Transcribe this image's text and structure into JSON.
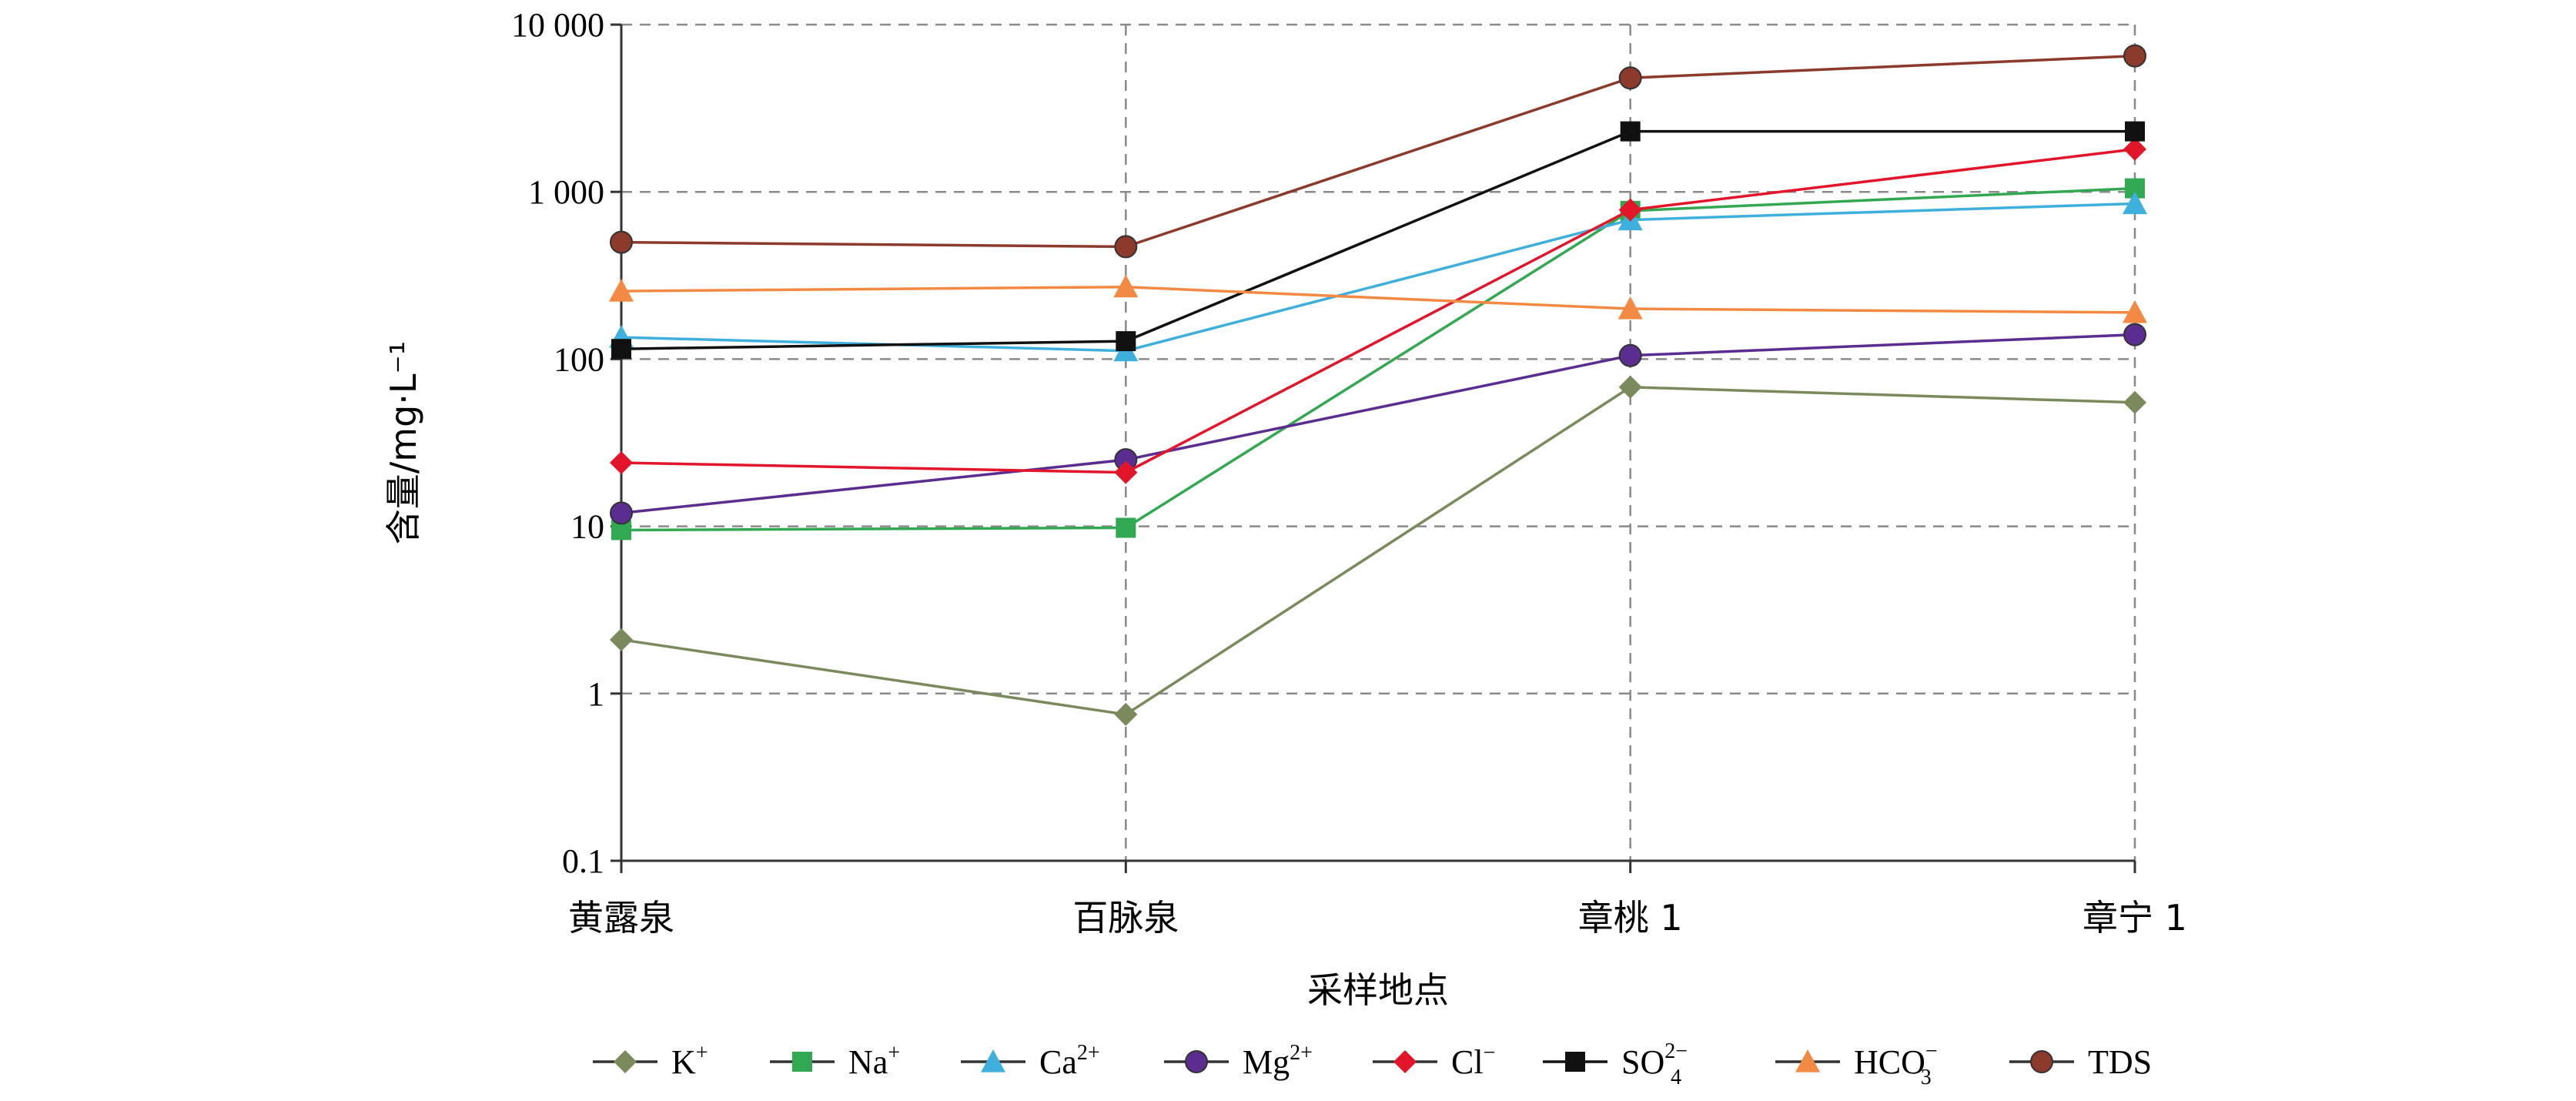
{
  "chart_data": {
    "type": "line",
    "title": "",
    "xlabel": "采样地点",
    "ylabel": "含量/mg·L⁻¹",
    "yscale": "log",
    "ylim": [
      0.1,
      10000
    ],
    "yticks": [
      {
        "value": 0.1,
        "label": "0.1"
      },
      {
        "value": 1,
        "label": "1"
      },
      {
        "value": 10,
        "label": "10"
      },
      {
        "value": 100,
        "label": "100"
      },
      {
        "value": 1000,
        "label": "1 000"
      },
      {
        "value": 10000,
        "label": "10 000"
      }
    ],
    "grid": true,
    "legend_position": "bottom",
    "categories": [
      "黄露泉",
      "百脉泉",
      "章桃 1",
      "章宁 1"
    ],
    "series": [
      {
        "id": "k",
        "base": "K",
        "sup": "+",
        "sub": "",
        "color": "#7a8a5c",
        "marker": "diamond",
        "values": [
          2.1,
          0.75,
          68,
          55
        ]
      },
      {
        "id": "na",
        "base": "Na",
        "sup": "+",
        "sub": "",
        "color": "#33a852",
        "marker": "square",
        "values": [
          9.5,
          9.8,
          770,
          1050
        ]
      },
      {
        "id": "ca",
        "base": "Ca",
        "sup": "2+",
        "sub": "",
        "color": "#3fb0dd",
        "marker": "triangle",
        "values": [
          135,
          112,
          680,
          850
        ]
      },
      {
        "id": "mg",
        "base": "Mg",
        "sup": "2+",
        "sub": "",
        "color": "#5b2d91",
        "marker": "circle",
        "values": [
          12,
          25,
          105,
          140
        ]
      },
      {
        "id": "cl",
        "base": "Cl",
        "sup": "−",
        "sub": "",
        "color": "#e3152b",
        "marker": "diamond",
        "values": [
          24,
          21,
          780,
          1800
        ]
      },
      {
        "id": "so4",
        "base": "SO",
        "sup": "2−",
        "sub": "4",
        "color": "#111111",
        "marker": "square",
        "values": [
          115,
          128,
          2300,
          2300
        ]
      },
      {
        "id": "hco3",
        "base": "HCO",
        "sup": "−",
        "sub": "3",
        "color": "#f28a44",
        "marker": "triangle",
        "values": [
          255,
          270,
          200,
          190
        ]
      },
      {
        "id": "tds",
        "base": "TDS",
        "sup": "",
        "sub": "",
        "color": "#8b3a2b",
        "marker": "circle",
        "values": [
          500,
          470,
          4800,
          6500
        ]
      }
    ]
  }
}
